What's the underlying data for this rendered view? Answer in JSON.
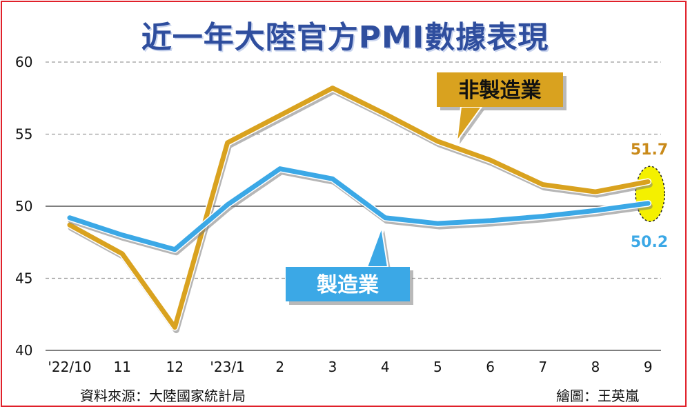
{
  "chart_data": {
    "type": "line",
    "title": "近一年大陸官方PMI數據表現",
    "categories": [
      "'22/10",
      "11",
      "12",
      "'23/1",
      "2",
      "3",
      "4",
      "5",
      "6",
      "7",
      "8",
      "9"
    ],
    "yticks": [
      "60",
      "55",
      "50",
      "45",
      "40"
    ],
    "ylim": [
      40,
      60
    ],
    "grid": true,
    "series": [
      {
        "name": "非製造業",
        "color": "#d9a21f",
        "values": [
          48.7,
          46.7,
          41.6,
          54.4,
          56.3,
          58.2,
          56.4,
          54.5,
          53.2,
          51.5,
          51.0,
          51.7
        ],
        "last_label": "51.7"
      },
      {
        "name": "製造業",
        "color": "#3ba8e6",
        "values": [
          49.2,
          48.0,
          47.0,
          50.1,
          52.6,
          51.9,
          49.2,
          48.8,
          49.0,
          49.3,
          49.7,
          50.2
        ],
        "last_label": "50.2"
      }
    ],
    "source": "資料來源：大陸國家統計局",
    "credit": "繪圖：王英嵐"
  },
  "colors": {
    "title": "#2f4e9e",
    "frame": "#e0202a",
    "highlight": "#f4f000"
  }
}
